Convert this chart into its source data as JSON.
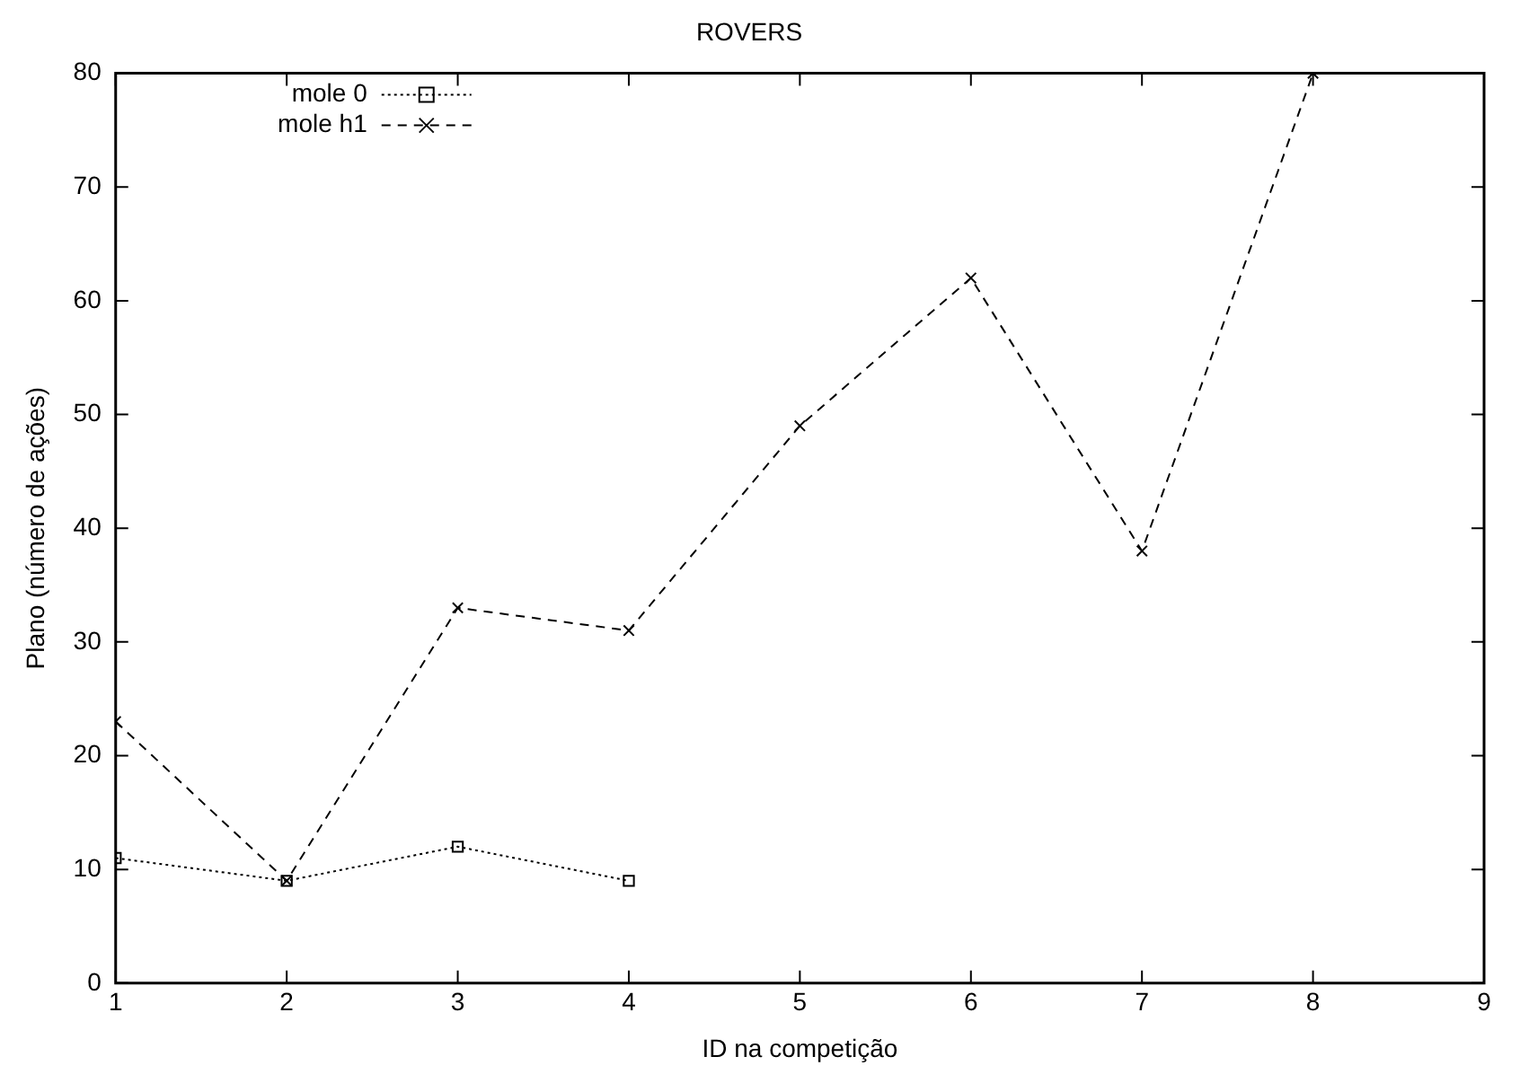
{
  "chart_data": {
    "type": "line",
    "title": "ROVERS",
    "xlabel": "ID na competição",
    "ylabel": "Plano (número de ações)",
    "x": [
      1,
      2,
      3,
      4,
      5,
      6,
      7,
      8
    ],
    "series": [
      {
        "name": "mole 0",
        "color": "#000000",
        "marker": "square",
        "line_style": "dotted",
        "x": [
          1,
          2,
          3,
          4
        ],
        "values": [
          11,
          9,
          12,
          9
        ]
      },
      {
        "name": "mole h1",
        "color": "#000000",
        "marker": "cross",
        "line_style": "dashed",
        "values": [
          23,
          9,
          33,
          31,
          49,
          62,
          38,
          80
        ]
      }
    ],
    "xlim": [
      1,
      9
    ],
    "xticks": [
      1,
      2,
      3,
      4,
      5,
      6,
      7,
      8,
      9
    ],
    "ylim": [
      0,
      80
    ],
    "yticks": [
      0,
      10,
      20,
      30,
      40,
      50,
      60,
      70,
      80
    ],
    "grid": false,
    "legend": "top left"
  }
}
